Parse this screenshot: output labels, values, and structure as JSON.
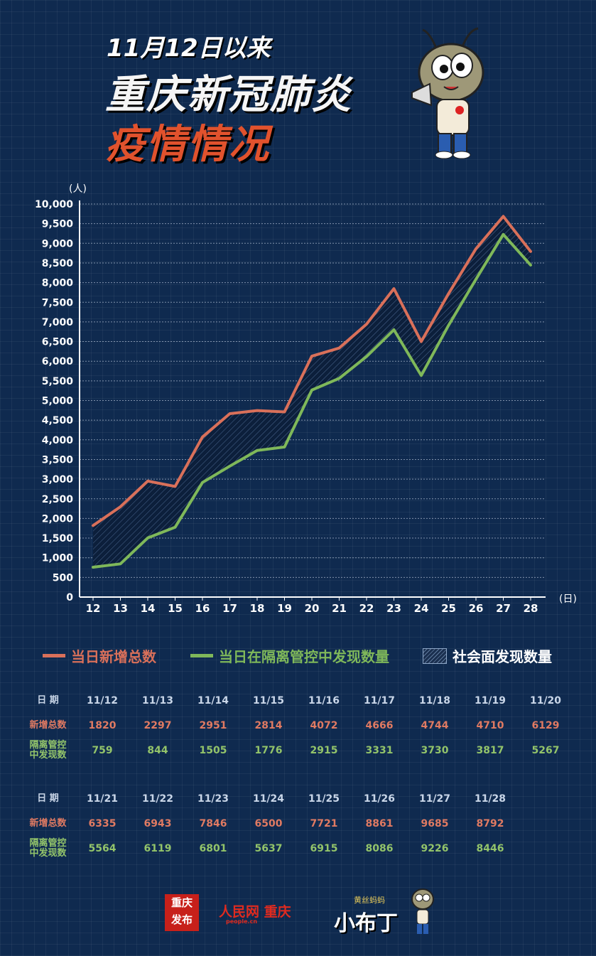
{
  "header": {
    "line1": "11月12日以来",
    "line2": "重庆新冠肺炎",
    "line3": "疫情情况"
  },
  "colors": {
    "background": "#0f2a4f",
    "total_line": "#d9705a",
    "isolated_line": "#7fb85a",
    "title_accent": "#e1522d"
  },
  "chart_data": {
    "type": "line",
    "ylabel": "(人)",
    "xlabel": "(日)",
    "ylim": [
      0,
      10000
    ],
    "y_ticks": [
      "0",
      "500",
      "1,000",
      "1,500",
      "2,000",
      "2,500",
      "3,000",
      "3,500",
      "4,000",
      "4,500",
      "5,000",
      "5,500",
      "6,000",
      "6,500",
      "7,000",
      "7,500",
      "8,000",
      "8,500",
      "9,000",
      "9,500",
      "10,000"
    ],
    "categories": [
      "12",
      "13",
      "14",
      "15",
      "16",
      "17",
      "18",
      "19",
      "20",
      "21",
      "22",
      "23",
      "24",
      "25",
      "26",
      "27",
      "28"
    ],
    "grid": true,
    "series": [
      {
        "name": "当日新增总数",
        "values": [
          1820,
          2297,
          2951,
          2814,
          4072,
          4666,
          4744,
          4710,
          6129,
          6335,
          6943,
          7846,
          6500,
          7721,
          8861,
          9685,
          8792
        ]
      },
      {
        "name": "当日在隔离管控中发现数量",
        "values": [
          759,
          844,
          1505,
          1776,
          2915,
          3331,
          3730,
          3817,
          5267,
          5564,
          6119,
          6801,
          5637,
          6915,
          8086,
          9226,
          8446
        ]
      }
    ],
    "area_name": "社会面发现数量",
    "legend": "bottom"
  },
  "legend": {
    "total": "当日新增总数",
    "isolated": "当日在隔离管控中发现数量",
    "community": "社会面发现数量"
  },
  "table": {
    "date_label": "日 期",
    "total_label": "新增总数",
    "isolated_label_1": "隔离管控",
    "isolated_label_2": "中发现数",
    "block1": {
      "dates": [
        "11/12",
        "11/13",
        "11/14",
        "11/15",
        "11/16",
        "11/17",
        "11/18",
        "11/19",
        "11/20"
      ],
      "totals": [
        "1820",
        "2297",
        "2951",
        "2814",
        "4072",
        "4666",
        "4744",
        "4710",
        "6129"
      ],
      "isolated": [
        "759",
        "844",
        "1505",
        "1776",
        "2915",
        "3331",
        "3730",
        "3817",
        "5267"
      ]
    },
    "block2": {
      "dates": [
        "11/21",
        "11/22",
        "11/23",
        "11/24",
        "11/25",
        "11/26",
        "11/27",
        "11/28"
      ],
      "totals": [
        "6335",
        "6943",
        "7846",
        "6500",
        "7721",
        "8861",
        "9685",
        "8792"
      ],
      "isolated": [
        "5564",
        "6119",
        "6801",
        "5637",
        "6915",
        "8086",
        "9226",
        "8446"
      ]
    }
  },
  "footer": {
    "logo1_line1": "重庆",
    "logo1_line2": "发布",
    "logo2_main": "人民网 重庆",
    "logo2_sub": "people.cn",
    "logo3_top": "黄丝蚂蚂",
    "logo3_main": "小布丁"
  }
}
